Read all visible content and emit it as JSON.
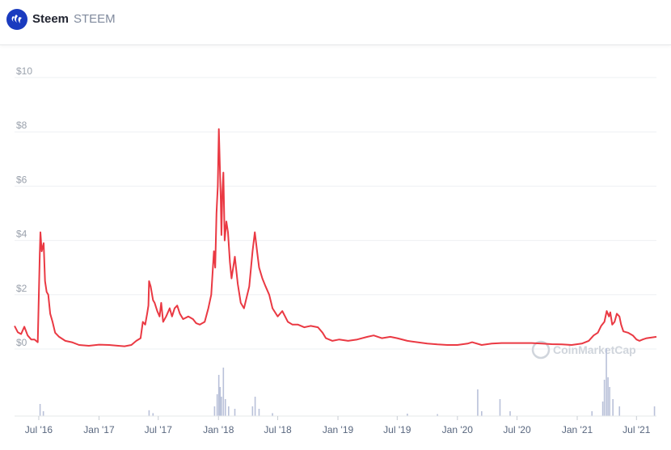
{
  "header": {
    "name": "Steem",
    "symbol": "STEEM",
    "logo_icon": "steem-logo-icon",
    "logo_color": "#1a3bbf"
  },
  "watermark": "CoinMarketCap",
  "chart_data": {
    "type": "line",
    "title": "",
    "xlabel": "",
    "ylabel": "",
    "ylim": [
      0,
      10
    ],
    "y_ticks": [
      "$0",
      "$2",
      "$4",
      "$6",
      "$8",
      "$10"
    ],
    "x_ticks": [
      "Jul '16",
      "Jan '17",
      "Jul '17",
      "Jan '18",
      "Jul '18",
      "Jan '19",
      "Jul '19",
      "Jan '20",
      "Jul '20",
      "Jan '21",
      "Jul '21"
    ],
    "x_range": [
      "2016-04-18",
      "2021-08-31"
    ],
    "grid": true,
    "line_color": "#ea3943",
    "series": [
      {
        "points": [
          [
            "2016-04-18",
            0.85
          ],
          [
            "2016-04-28",
            0.62
          ],
          [
            "2016-05-08",
            0.55
          ],
          [
            "2016-05-18",
            0.82
          ],
          [
            "2016-05-28",
            0.5
          ],
          [
            "2016-06-08",
            0.35
          ],
          [
            "2016-06-18",
            0.35
          ],
          [
            "2016-06-28",
            0.25
          ],
          [
            "2016-07-04",
            3.5
          ],
          [
            "2016-07-06",
            4.3
          ],
          [
            "2016-07-10",
            3.6
          ],
          [
            "2016-07-16",
            3.9
          ],
          [
            "2016-07-20",
            2.5
          ],
          [
            "2016-07-25",
            2.1
          ],
          [
            "2016-07-30",
            2.0
          ],
          [
            "2016-08-05",
            1.3
          ],
          [
            "2016-08-12",
            1.0
          ],
          [
            "2016-08-20",
            0.6
          ],
          [
            "2016-09-01",
            0.45
          ],
          [
            "2016-09-20",
            0.3
          ],
          [
            "2016-10-10",
            0.25
          ],
          [
            "2016-11-01",
            0.15
          ],
          [
            "2016-12-01",
            0.12
          ],
          [
            "2017-01-01",
            0.16
          ],
          [
            "2017-02-01",
            0.15
          ],
          [
            "2017-03-01",
            0.12
          ],
          [
            "2017-03-20",
            0.1
          ],
          [
            "2017-04-10",
            0.15
          ],
          [
            "2017-04-25",
            0.3
          ],
          [
            "2017-05-08",
            0.4
          ],
          [
            "2017-05-15",
            1.0
          ],
          [
            "2017-05-22",
            0.9
          ],
          [
            "2017-05-28",
            1.3
          ],
          [
            "2017-06-01",
            1.6
          ],
          [
            "2017-06-03",
            2.5
          ],
          [
            "2017-06-08",
            2.3
          ],
          [
            "2017-06-15",
            1.8
          ],
          [
            "2017-06-20",
            1.7
          ],
          [
            "2017-06-28",
            1.4
          ],
          [
            "2017-07-05",
            1.2
          ],
          [
            "2017-07-10",
            1.7
          ],
          [
            "2017-07-16",
            1.0
          ],
          [
            "2017-07-25",
            1.2
          ],
          [
            "2017-08-05",
            1.5
          ],
          [
            "2017-08-12",
            1.2
          ],
          [
            "2017-08-20",
            1.5
          ],
          [
            "2017-08-28",
            1.6
          ],
          [
            "2017-09-05",
            1.3
          ],
          [
            "2017-09-15",
            1.1
          ],
          [
            "2017-10-01",
            1.2
          ],
          [
            "2017-10-15",
            1.1
          ],
          [
            "2017-10-25",
            0.95
          ],
          [
            "2017-11-05",
            0.9
          ],
          [
            "2017-11-20",
            1.0
          ],
          [
            "2017-12-01",
            1.5
          ],
          [
            "2017-12-10",
            2.0
          ],
          [
            "2017-12-18",
            3.6
          ],
          [
            "2017-12-22",
            3.0
          ],
          [
            "2017-12-26",
            5.0
          ],
          [
            "2017-12-30",
            6.0
          ],
          [
            "2018-01-02",
            8.1
          ],
          [
            "2018-01-05",
            6.8
          ],
          [
            "2018-01-08",
            5.5
          ],
          [
            "2018-01-10",
            4.2
          ],
          [
            "2018-01-13",
            5.8
          ],
          [
            "2018-01-16",
            6.5
          ],
          [
            "2018-01-20",
            4.0
          ],
          [
            "2018-01-25",
            4.7
          ],
          [
            "2018-01-30",
            4.3
          ],
          [
            "2018-02-05",
            3.2
          ],
          [
            "2018-02-10",
            2.6
          ],
          [
            "2018-02-20",
            3.4
          ],
          [
            "2018-03-01",
            2.4
          ],
          [
            "2018-03-10",
            1.7
          ],
          [
            "2018-03-20",
            1.5
          ],
          [
            "2018-04-05",
            2.3
          ],
          [
            "2018-04-15",
            3.6
          ],
          [
            "2018-04-22",
            4.3
          ],
          [
            "2018-04-30",
            3.5
          ],
          [
            "2018-05-05",
            3.0
          ],
          [
            "2018-05-15",
            2.6
          ],
          [
            "2018-05-25",
            2.3
          ],
          [
            "2018-06-05",
            2.0
          ],
          [
            "2018-06-15",
            1.5
          ],
          [
            "2018-07-01",
            1.2
          ],
          [
            "2018-07-15",
            1.4
          ],
          [
            "2018-08-01",
            1.0
          ],
          [
            "2018-08-15",
            0.9
          ],
          [
            "2018-09-01",
            0.9
          ],
          [
            "2018-09-20",
            0.8
          ],
          [
            "2018-10-10",
            0.85
          ],
          [
            "2018-11-01",
            0.8
          ],
          [
            "2018-11-15",
            0.6
          ],
          [
            "2018-11-25",
            0.4
          ],
          [
            "2018-12-15",
            0.3
          ],
          [
            "2019-01-05",
            0.35
          ],
          [
            "2019-02-01",
            0.3
          ],
          [
            "2019-03-01",
            0.35
          ],
          [
            "2019-04-01",
            0.45
          ],
          [
            "2019-04-20",
            0.5
          ],
          [
            "2019-05-15",
            0.4
          ],
          [
            "2019-06-10",
            0.45
          ],
          [
            "2019-07-01",
            0.4
          ],
          [
            "2019-08-01",
            0.3
          ],
          [
            "2019-09-01",
            0.25
          ],
          [
            "2019-10-01",
            0.2
          ],
          [
            "2019-11-01",
            0.17
          ],
          [
            "2019-12-01",
            0.15
          ],
          [
            "2020-01-01",
            0.15
          ],
          [
            "2020-02-01",
            0.2
          ],
          [
            "2020-02-15",
            0.25
          ],
          [
            "2020-03-15",
            0.15
          ],
          [
            "2020-04-15",
            0.2
          ],
          [
            "2020-05-15",
            0.22
          ],
          [
            "2020-06-15",
            0.22
          ],
          [
            "2020-07-15",
            0.22
          ],
          [
            "2020-08-15",
            0.22
          ],
          [
            "2020-09-15",
            0.2
          ],
          [
            "2020-10-15",
            0.18
          ],
          [
            "2020-11-15",
            0.17
          ],
          [
            "2020-12-15",
            0.15
          ],
          [
            "2021-01-15",
            0.2
          ],
          [
            "2021-02-05",
            0.3
          ],
          [
            "2021-02-20",
            0.5
          ],
          [
            "2021-03-05",
            0.6
          ],
          [
            "2021-03-15",
            0.85
          ],
          [
            "2021-03-25",
            1.0
          ],
          [
            "2021-04-01",
            1.4
          ],
          [
            "2021-04-08",
            1.2
          ],
          [
            "2021-04-12",
            1.35
          ],
          [
            "2021-04-18",
            0.9
          ],
          [
            "2021-04-25",
            1.0
          ],
          [
            "2021-05-02",
            1.3
          ],
          [
            "2021-05-10",
            1.2
          ],
          [
            "2021-05-15",
            0.9
          ],
          [
            "2021-05-22",
            0.65
          ],
          [
            "2021-06-05",
            0.6
          ],
          [
            "2021-06-20",
            0.5
          ],
          [
            "2021-07-01",
            0.35
          ],
          [
            "2021-07-10",
            0.3
          ],
          [
            "2021-07-20",
            0.35
          ],
          [
            "2021-08-01",
            0.4
          ],
          [
            "2021-08-31",
            0.45
          ]
        ]
      }
    ],
    "volume": {
      "color": "#b9c1d9",
      "values": [
        [
          "2016-07-05",
          0.25
        ],
        [
          "2016-07-15",
          0.1
        ],
        [
          "2017-06-03",
          0.12
        ],
        [
          "2017-06-15",
          0.06
        ],
        [
          "2017-12-20",
          0.2
        ],
        [
          "2017-12-28",
          0.45
        ],
        [
          "2018-01-02",
          0.85
        ],
        [
          "2018-01-06",
          0.6
        ],
        [
          "2018-01-10",
          0.4
        ],
        [
          "2018-01-16",
          1.0
        ],
        [
          "2018-01-22",
          0.35
        ],
        [
          "2018-02-01",
          0.2
        ],
        [
          "2018-02-20",
          0.15
        ],
        [
          "2018-04-15",
          0.2
        ],
        [
          "2018-04-23",
          0.4
        ],
        [
          "2018-05-05",
          0.15
        ],
        [
          "2018-06-15",
          0.06
        ],
        [
          "2019-08-01",
          0.05
        ],
        [
          "2019-11-01",
          0.04
        ],
        [
          "2020-03-03",
          0.55
        ],
        [
          "2020-03-15",
          0.1
        ],
        [
          "2020-05-10",
          0.35
        ],
        [
          "2020-06-10",
          0.1
        ],
        [
          "2021-02-15",
          0.1
        ],
        [
          "2021-03-20",
          0.3
        ],
        [
          "2021-03-25",
          0.75
        ],
        [
          "2021-03-31",
          1.4
        ],
        [
          "2021-04-05",
          0.8
        ],
        [
          "2021-04-10",
          0.6
        ],
        [
          "2021-04-20",
          0.35
        ],
        [
          "2021-05-10",
          0.2
        ],
        [
          "2021-08-25",
          0.2
        ]
      ]
    }
  }
}
